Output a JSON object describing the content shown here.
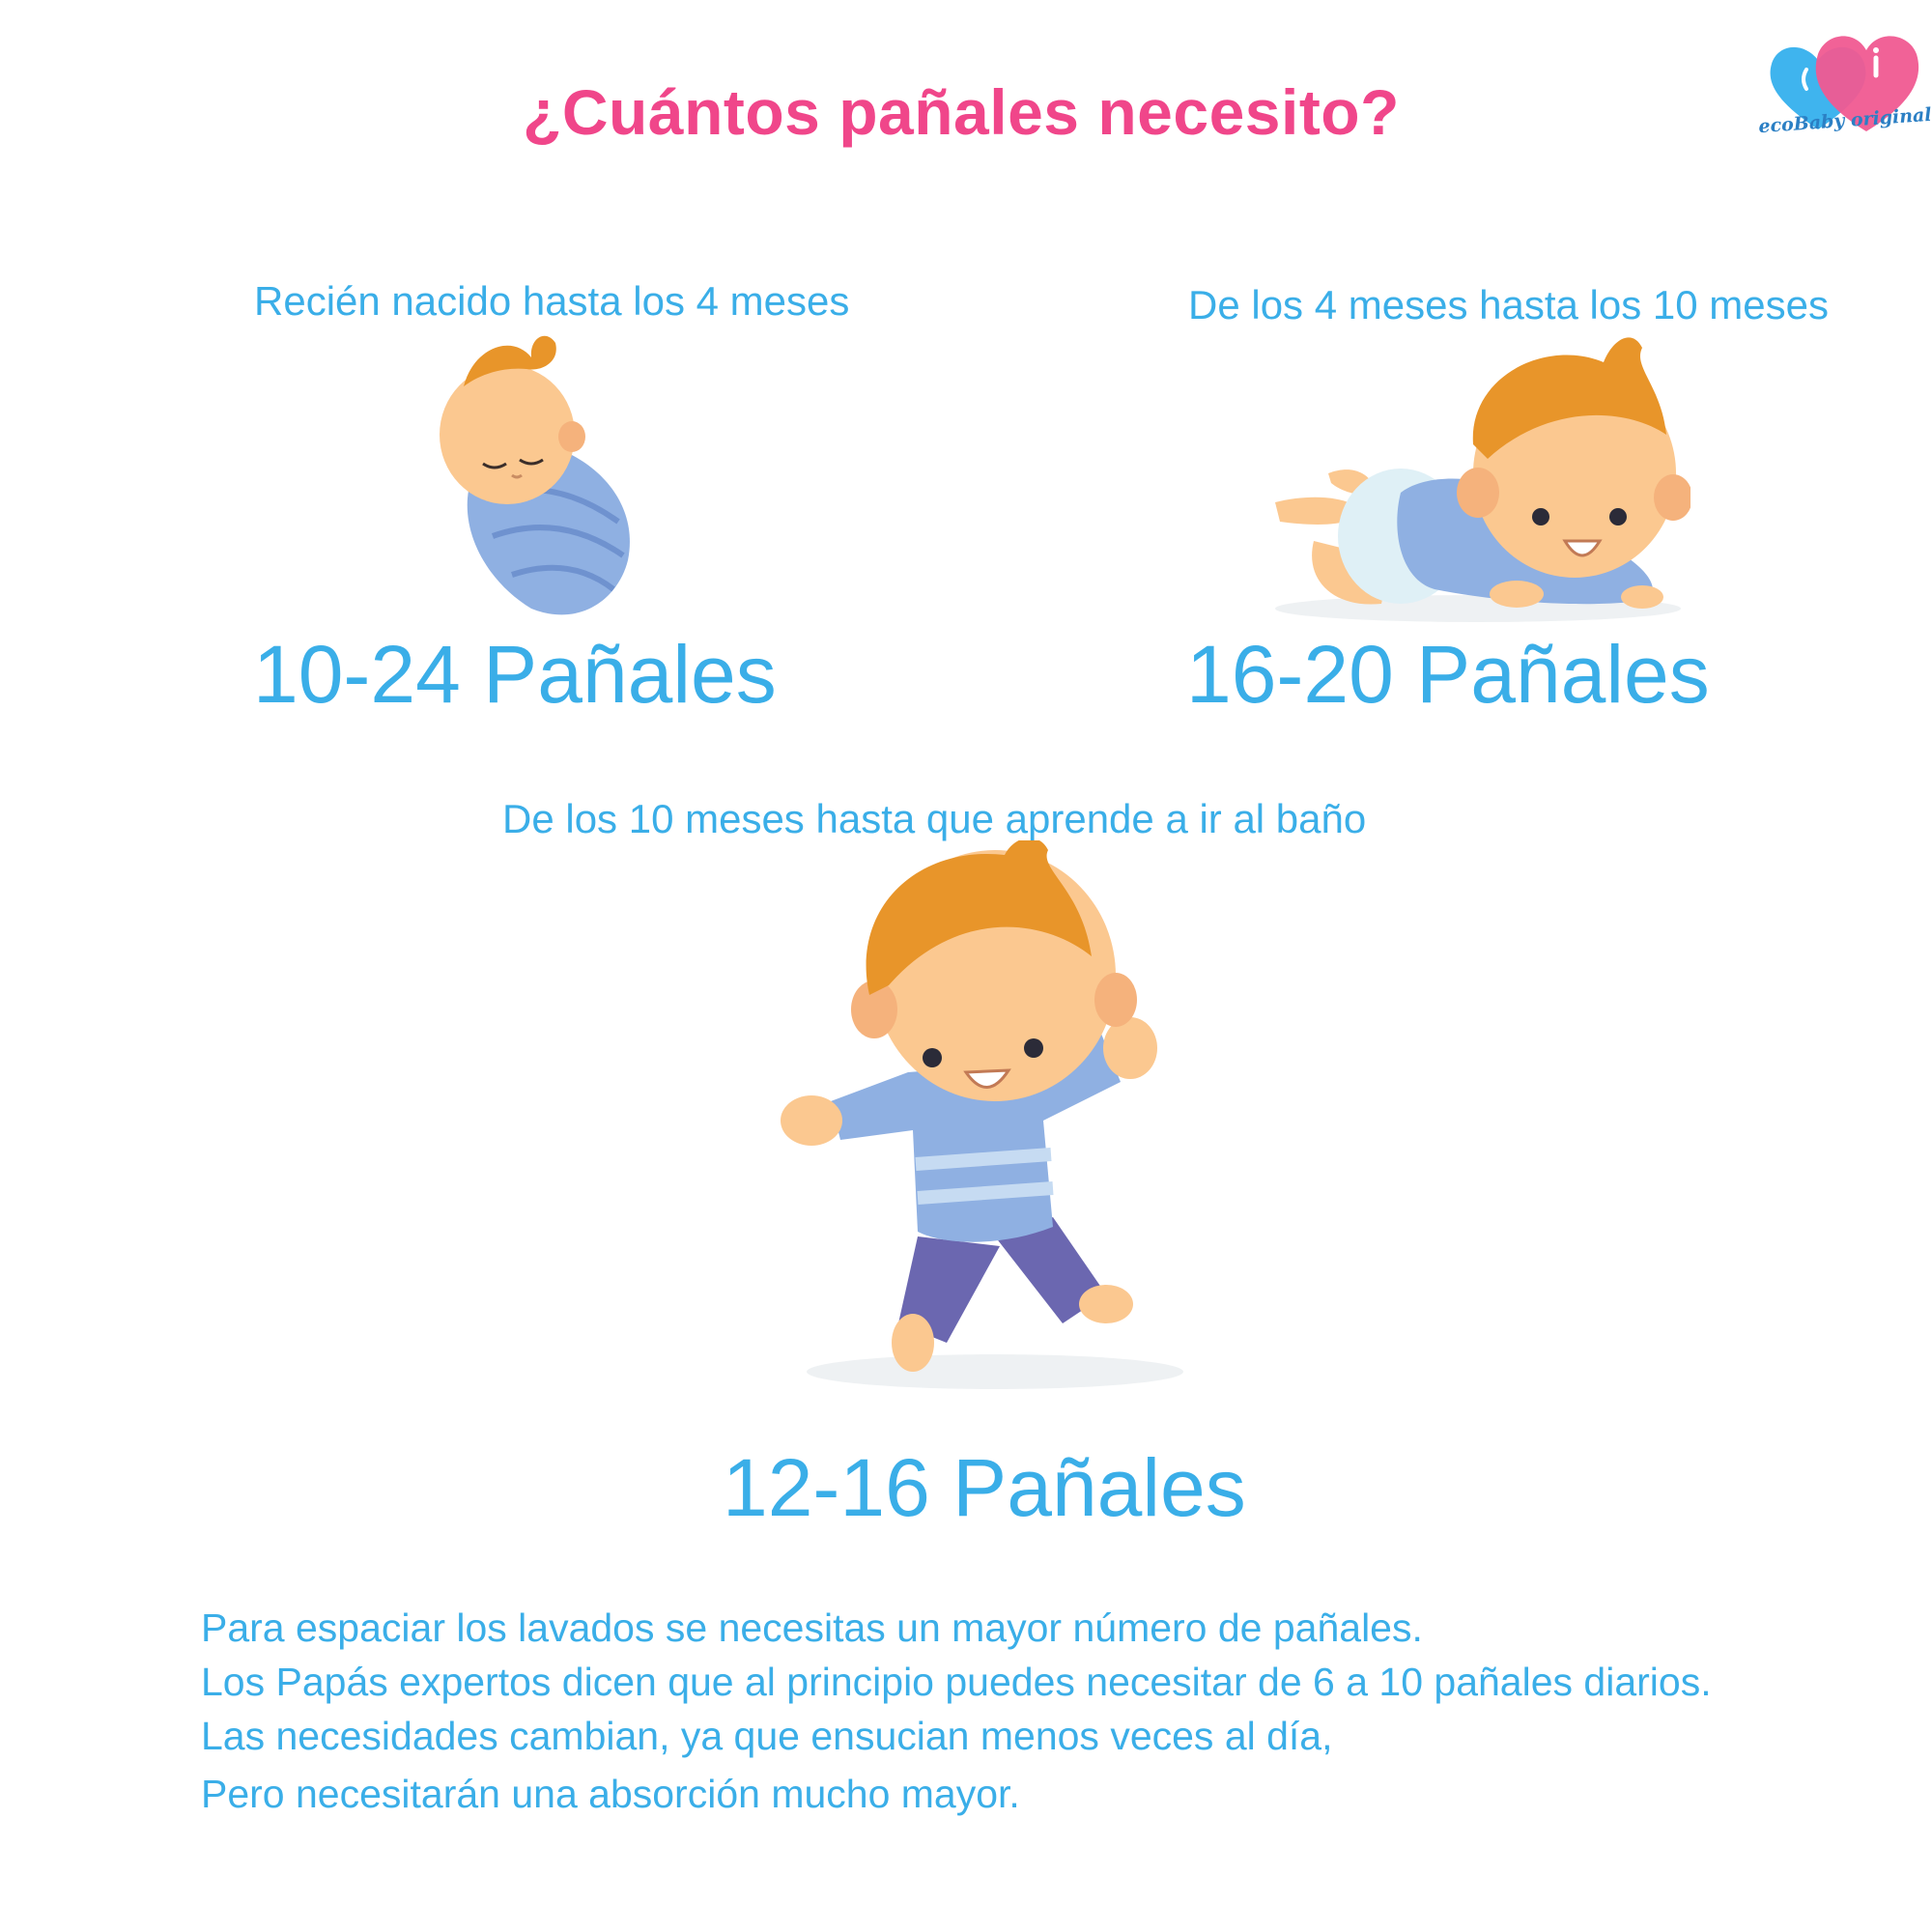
{
  "title": "¿Cuántos pañales necesito?",
  "logo": {
    "text": "ecoBaby original",
    "icon": "two-hearts-logo"
  },
  "stages": [
    {
      "age": "Recién nacido hasta los 4 meses",
      "count": "10-24 Pañales",
      "icon": "swaddled-newborn-illustration"
    },
    {
      "age": "De los 4 meses hasta los 10 meses",
      "count": "16-20 Pañales",
      "icon": "crawling-baby-illustration"
    },
    {
      "age": "De los 10 meses hasta que aprende a ir al baño",
      "count": "12-16 Pañales",
      "icon": "walking-toddler-illustration"
    }
  ],
  "notes": [
    "Para espaciar los lavados se necesitas un mayor número de pañales.",
    "Los Papás expertos dicen que al principio puedes necesitar de 6 a 10 pañales diarios.",
    "Las necesidades cambian, ya que ensucian menos veces al día,",
    "Pero necesitarán una absorción mucho mayor."
  ],
  "colors": {
    "title": "#f0468a",
    "text": "#3aaee8",
    "heart_pink": "#f05a91",
    "heart_blue": "#3fb4ee",
    "skin": "#fbc890",
    "hair": "#e8952a",
    "clothes_blue": "#8fb0e2",
    "pants_purple": "#6b67b0"
  }
}
